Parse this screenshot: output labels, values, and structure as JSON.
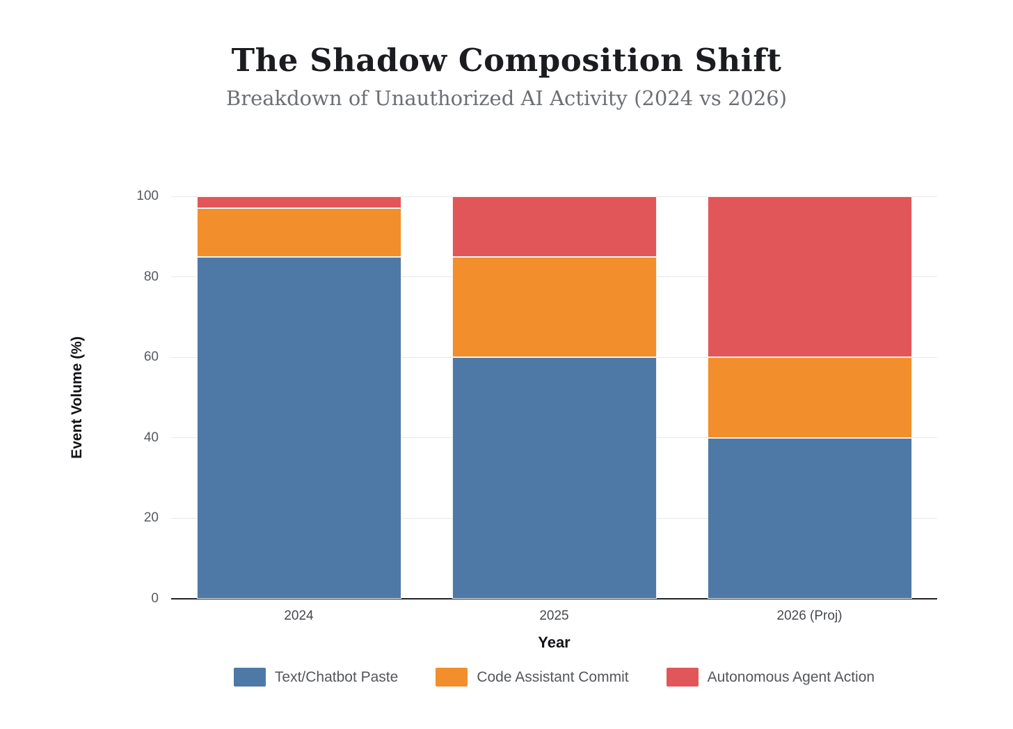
{
  "chart_data": {
    "type": "bar",
    "stacked": true,
    "title": "The Shadow Composition Shift",
    "subtitle": "Breakdown of Unauthorized AI Activity (2024 vs 2026)",
    "categories": [
      "2024",
      "2025",
      "2026 (Proj)"
    ],
    "series": [
      {
        "name": "Text/Chatbot Paste",
        "color": "#4E79A7",
        "values": [
          85,
          60,
          40
        ]
      },
      {
        "name": "Code Assistant Commit",
        "color": "#F28E2B",
        "values": [
          12,
          25,
          20
        ]
      },
      {
        "name": "Autonomous Agent Action",
        "color": "#E15759",
        "values": [
          3,
          15,
          40
        ]
      }
    ],
    "xlabel": "Year",
    "ylabel": "Event Volume (%)",
    "ylim": [
      0,
      100
    ],
    "yticks": [
      0,
      20,
      40,
      60,
      80,
      100
    ],
    "grid": true,
    "legend_position": "bottom"
  },
  "colors": {
    "background": "#FFFFFF",
    "gridline": "#E4E7EC",
    "axis_line": "#222326",
    "tick_label": "#55585D",
    "title": "#1B1C1F",
    "subtitle": "#6C6F74"
  }
}
